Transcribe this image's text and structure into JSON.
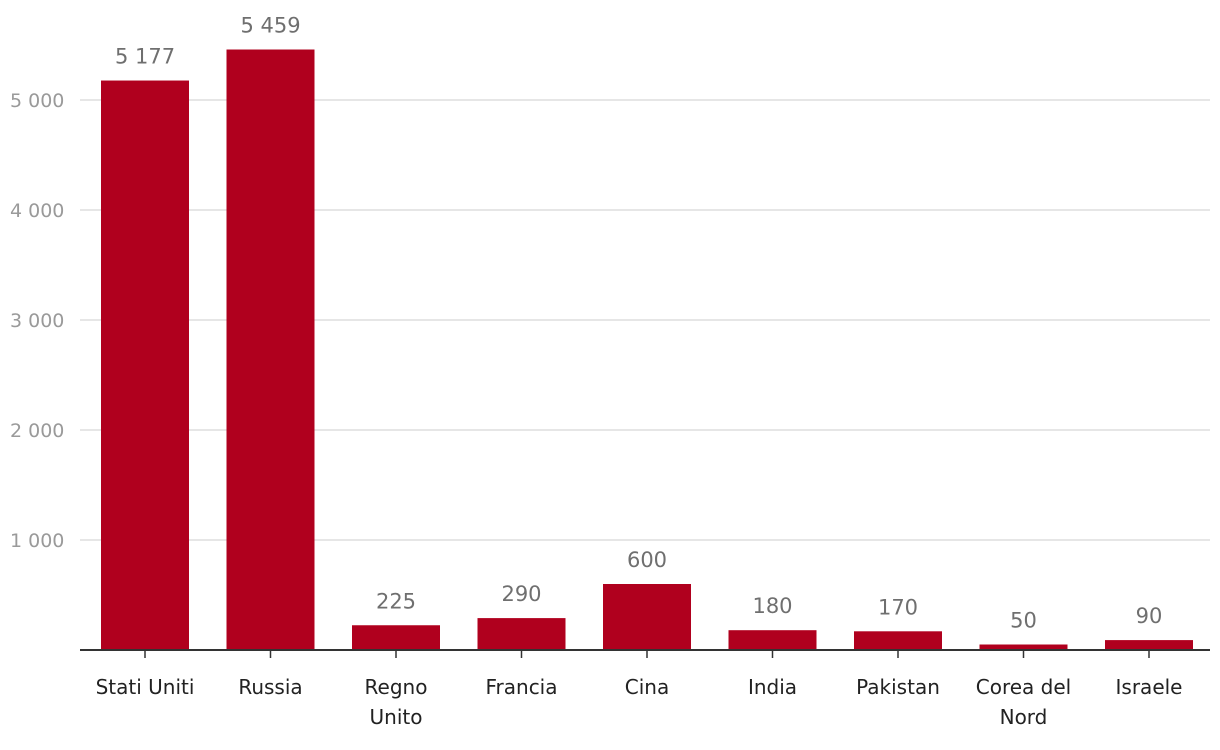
{
  "chart_data": {
    "type": "bar",
    "title": "",
    "xlabel": "",
    "ylabel": "",
    "categories": [
      [
        "Stati Uniti"
      ],
      [
        "Russia"
      ],
      [
        "Regno",
        "Unito"
      ],
      [
        "Francia"
      ],
      [
        "Cina"
      ],
      [
        "India"
      ],
      [
        "Pakistan"
      ],
      [
        "Corea del",
        "Nord"
      ],
      [
        "Israele"
      ]
    ],
    "values": [
      5177,
      5459,
      225,
      290,
      600,
      180,
      170,
      50,
      90
    ],
    "value_labels": [
      "5 177",
      "5 459",
      "225",
      "290",
      "600",
      "180",
      "170",
      "50",
      "90"
    ],
    "y_ticks": [
      1000,
      2000,
      3000,
      4000,
      5000
    ],
    "y_tick_labels": [
      "1 000",
      "2 000",
      "3 000",
      "4 000",
      "5 000"
    ],
    "ylim": [
      0,
      5459
    ],
    "grid": true,
    "legend": "none",
    "colors": {
      "bar": "#b0001e",
      "grid": "#dedede",
      "axis": "#333333",
      "tick_label": "#9a9a9a",
      "value_label": "#6f6f6f",
      "category_label": "#222222"
    }
  }
}
